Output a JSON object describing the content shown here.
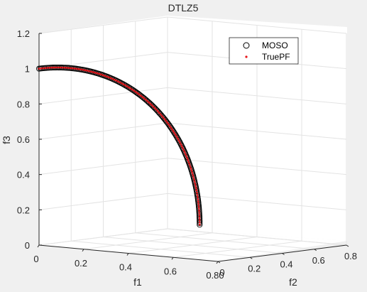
{
  "chart_data": {
    "type": "scatter",
    "title": "DTLZ5",
    "xlabel": "f1",
    "ylabel": "f2",
    "zlabel": "f3",
    "xlim": [
      0,
      0.8
    ],
    "ylim": [
      0,
      0.8
    ],
    "zlim": [
      0,
      1.2
    ],
    "x_ticks": [
      "0",
      "0.2",
      "0.4",
      "0.6",
      "0.80"
    ],
    "y_ticks": [
      "0",
      "0.2",
      "0.4",
      "0.6",
      "0.8"
    ],
    "z_ticks": [
      "0",
      "0.2",
      "0.4",
      "0.6",
      "0.8",
      "1",
      "1.2"
    ],
    "grid": true,
    "legend_position": "top-right",
    "series": [
      {
        "name": "MOSO",
        "marker": "open-circle",
        "color": "#000000",
        "curve": {
          "f1": [
            0,
            0
          ],
          "f2": [
            0,
            0.7071
          ],
          "f3": [
            1,
            0
          ],
          "points": 180
        }
      },
      {
        "name": "TruePF",
        "marker": "dot",
        "color": "#e8151a",
        "curve": {
          "f1": [
            0,
            0
          ],
          "f2": [
            0,
            0.7071
          ],
          "f3": [
            1,
            0
          ],
          "points": 120
        }
      }
    ]
  }
}
